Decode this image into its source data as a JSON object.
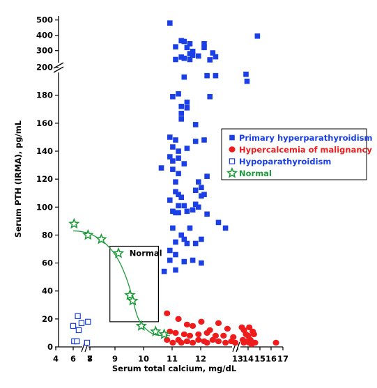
{
  "chart_data": {
    "type": "scatter",
    "xlabel": "Serum total calcium, mg/dL",
    "ylabel": "Serum PTH (IRMA), pg/mL",
    "x_ticks": [
      "4",
      "6",
      "7",
      "8",
      "9",
      "10",
      "11",
      "12",
      "13",
      "14",
      "15",
      "16",
      "17"
    ],
    "y_ticks_lower": [
      "0",
      "20",
      "40",
      "60",
      "80",
      "100",
      "120",
      "140",
      "160",
      "180",
      "200"
    ],
    "y_ticks_upper": [
      "300",
      "400",
      "500"
    ],
    "box_label": "Normal",
    "box": {
      "x_from": 8.7,
      "x_to": 10.4,
      "y_from": 18,
      "y_to": 72
    },
    "legend": [
      {
        "label": "Primary hyperparathyroidism",
        "color": "#1a3fe6",
        "marker": "filled-square"
      },
      {
        "label": "Hypercalcemia of malignancy",
        "color": "#ee1c1c",
        "marker": "filled-circle"
      },
      {
        "label": "Hypoparathyroidism",
        "color": "#1a3fe6",
        "marker": "open-square"
      },
      {
        "label": "Normal",
        "color": "#1d9a3a",
        "marker": "open-star"
      }
    ],
    "series": [
      {
        "name": "Primary hyperparathyroidism",
        "color": "#1a3fe6",
        "marker": "filled-square",
        "points": [
          [
            10.8,
            480
          ],
          [
            11.2,
            365
          ],
          [
            11.3,
            360
          ],
          [
            11.5,
            345
          ],
          [
            11.0,
            325
          ],
          [
            11.4,
            320
          ],
          [
            12.0,
            345
          ],
          [
            12.0,
            320
          ],
          [
            11.6,
            295
          ],
          [
            11.5,
            280
          ],
          [
            12.3,
            285
          ],
          [
            11.6,
            270
          ],
          [
            11.8,
            265
          ],
          [
            12.4,
            260
          ],
          [
            11.2,
            258
          ],
          [
            11.0,
            242
          ],
          [
            11.3,
            250
          ],
          [
            11.5,
            242
          ],
          [
            12.2,
            240
          ],
          [
            14.8,
            395
          ],
          [
            11.3,
            193
          ],
          [
            12.1,
            194
          ],
          [
            12.4,
            194
          ],
          [
            13.8,
            195
          ],
          [
            13.9,
            190
          ],
          [
            10.9,
            179
          ],
          [
            11.1,
            181
          ],
          [
            11.2,
            172
          ],
          [
            11.4,
            175
          ],
          [
            11.4,
            171
          ],
          [
            11.2,
            167
          ],
          [
            12.2,
            179
          ],
          [
            11.2,
            163
          ],
          [
            11.7,
            159
          ],
          [
            10.8,
            150
          ],
          [
            10.9,
            143
          ],
          [
            11.0,
            148
          ],
          [
            11.1,
            140
          ],
          [
            11.4,
            142
          ],
          [
            11.7,
            147
          ],
          [
            12.0,
            148
          ],
          [
            10.8,
            136
          ],
          [
            10.9,
            133
          ],
          [
            11.1,
            135
          ],
          [
            11.3,
            131
          ],
          [
            10.5,
            128
          ],
          [
            10.9,
            127
          ],
          [
            11.1,
            124
          ],
          [
            11.0,
            118
          ],
          [
            11.8,
            118
          ],
          [
            12.1,
            122
          ],
          [
            11.9,
            114
          ],
          [
            11.0,
            111
          ],
          [
            11.1,
            109
          ],
          [
            11.2,
            107
          ],
          [
            11.7,
            112
          ],
          [
            11.9,
            108
          ],
          [
            10.8,
            105
          ],
          [
            11.1,
            101
          ],
          [
            11.3,
            101
          ],
          [
            11.7,
            102
          ],
          [
            12.0,
            109
          ],
          [
            10.9,
            97
          ],
          [
            11.0,
            96
          ],
          [
            11.1,
            96
          ],
          [
            11.4,
            97
          ],
          [
            11.6,
            98
          ],
          [
            11.8,
            100
          ],
          [
            12.1,
            95
          ],
          [
            12.5,
            89
          ],
          [
            12.8,
            85
          ],
          [
            10.9,
            85
          ],
          [
            11.5,
            85
          ],
          [
            11.2,
            80
          ],
          [
            11.3,
            77
          ],
          [
            11.0,
            75
          ],
          [
            11.4,
            74
          ],
          [
            11.7,
            74
          ],
          [
            11.9,
            77
          ],
          [
            10.8,
            69
          ],
          [
            11.0,
            66
          ],
          [
            10.8,
            62
          ],
          [
            11.3,
            61
          ],
          [
            11.6,
            62
          ],
          [
            11.9,
            60
          ],
          [
            11.0,
            55
          ],
          [
            10.6,
            54
          ]
        ]
      },
      {
        "name": "Hypercalcemia of malignancy",
        "color": "#ee1c1c",
        "marker": "filled-circle",
        "points": [
          [
            10.7,
            24
          ],
          [
            11.1,
            20
          ],
          [
            11.4,
            16
          ],
          [
            11.6,
            15
          ],
          [
            11.9,
            18
          ],
          [
            12.2,
            12
          ],
          [
            12.5,
            17
          ],
          [
            12.9,
            13
          ],
          [
            13.4,
            14
          ],
          [
            13.6,
            12
          ],
          [
            13.8,
            9
          ],
          [
            14.1,
            14
          ],
          [
            14.4,
            11
          ],
          [
            10.8,
            11
          ],
          [
            11.0,
            10
          ],
          [
            11.3,
            9
          ],
          [
            11.5,
            8
          ],
          [
            11.8,
            9
          ],
          [
            12.1,
            10
          ],
          [
            12.4,
            8
          ],
          [
            12.7,
            8
          ],
          [
            13.2,
            7
          ],
          [
            13.5,
            5
          ],
          [
            14.0,
            8
          ],
          [
            14.2,
            5
          ],
          [
            14.5,
            9
          ],
          [
            10.7,
            5
          ],
          [
            10.9,
            3
          ],
          [
            11.1,
            5
          ],
          [
            11.2,
            3
          ],
          [
            11.4,
            4
          ],
          [
            11.6,
            3
          ],
          [
            11.8,
            5
          ],
          [
            12.0,
            4
          ],
          [
            12.1,
            3
          ],
          [
            12.3,
            5
          ],
          [
            12.5,
            4
          ],
          [
            12.8,
            3
          ],
          [
            13.1,
            4
          ],
          [
            13.3,
            3
          ],
          [
            13.6,
            3
          ],
          [
            13.9,
            4
          ],
          [
            14.1,
            3
          ],
          [
            14.3,
            2
          ],
          [
            14.6,
            3
          ],
          [
            16.4,
            3
          ]
        ]
      },
      {
        "name": "Hypoparathyroidism",
        "color": "#1a3fe6",
        "marker": "open-square",
        "points": [
          [
            6.0,
            15
          ],
          [
            6.5,
            22
          ],
          [
            6.6,
            12
          ],
          [
            6.9,
            17
          ],
          [
            7.6,
            18
          ],
          [
            6.1,
            4
          ],
          [
            6.4,
            4
          ],
          [
            7.5,
            3
          ]
        ]
      },
      {
        "name": "Normal",
        "color": "#1d9a3a",
        "marker": "open-star",
        "points": [
          [
            6.1,
            88
          ],
          [
            7.6,
            80
          ],
          [
            8.4,
            77
          ],
          [
            9.0,
            67
          ],
          [
            9.4,
            37
          ],
          [
            9.5,
            33
          ],
          [
            9.8,
            15
          ],
          [
            10.3,
            11
          ],
          [
            10.6,
            9
          ]
        ]
      }
    ]
  }
}
